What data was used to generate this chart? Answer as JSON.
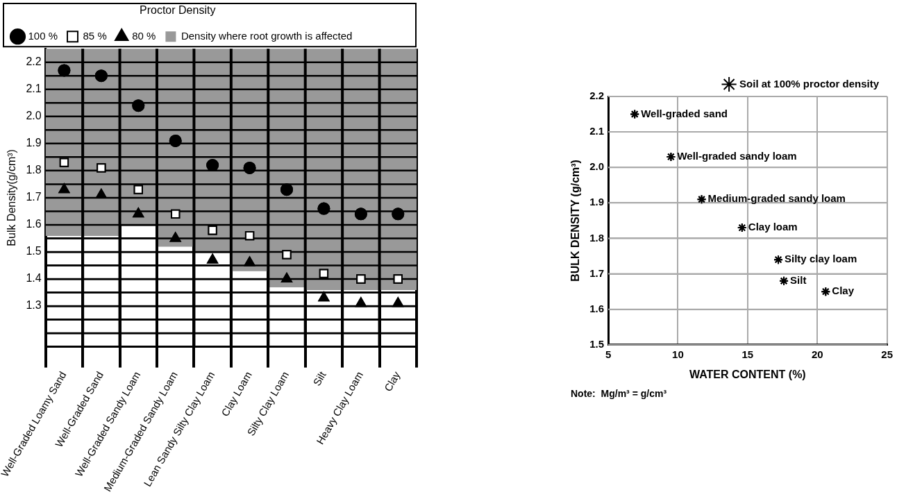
{
  "chart_data": [
    {
      "type": "scatter",
      "ylabel": "Bulk Density(g/cm³)",
      "legend_title": "Proctor Density",
      "legend": "top",
      "grid": true,
      "categories": [
        "Well-Graded Loamy Sand",
        "Well-Graded Sand",
        "Well-Graded Sandy Loam",
        "Medium-Graded Sandy Loam",
        "Lean Sandy Silty Clay Loam",
        "Clay Loam",
        "Silty Clay Loam",
        "Silt",
        "Heavy Clay Loam",
        "Clay"
      ],
      "ylim": [
        1.15,
        2.25
      ],
      "yticks": [
        {
          "value": 1.2,
          "label": null
        },
        {
          "value": 1.25,
          "label": null
        },
        1.3,
        {
          "value": 1.35,
          "label": null
        },
        1.4,
        {
          "value": 1.45,
          "label": null
        },
        1.5,
        {
          "value": 1.55,
          "label": null
        },
        1.6,
        {
          "value": 1.65,
          "label": null
        },
        1.7,
        {
          "value": 1.75,
          "label": null
        },
        1.8,
        {
          "value": 1.85,
          "label": null
        },
        1.9,
        {
          "value": 1.95,
          "label": null
        },
        {
          "value": 2,
          "label": "2.0"
        },
        {
          "value": 2.05,
          "label": null
        },
        2.1,
        {
          "value": 2.15,
          "label": null
        },
        2.2
      ],
      "series": [
        {
          "name": "100 %",
          "marker": "circle",
          "color": "#000000",
          "values": [
            2.17,
            2.15,
            2.04,
            1.91,
            1.82,
            1.81,
            1.73,
            1.66,
            1.64,
            1.64
          ]
        },
        {
          "name": "85 %",
          "marker": "square",
          "color": "#ffffff",
          "values": [
            1.83,
            1.81,
            1.73,
            1.64,
            1.58,
            1.56,
            1.49,
            1.42,
            1.4,
            1.4
          ]
        },
        {
          "name": "80 %",
          "marker": "triangle",
          "color": "#000000",
          "values": [
            1.73,
            1.71,
            1.64,
            1.55,
            1.47,
            1.46,
            1.4,
            1.33,
            1.31,
            1.31
          ]
        },
        {
          "type": "bar",
          "name": "Density where root growth is affected",
          "color": "#999999",
          "base": [
            1.56,
            1.56,
            1.6,
            1.52,
            1.5,
            1.43,
            1.37,
            1.36,
            1.36,
            1.36
          ],
          "values": [
            0.69,
            0.69,
            0.65,
            0.73,
            0.75,
            0.82,
            0.88,
            0.89,
            0.89,
            0.89
          ]
        }
      ]
    },
    {
      "type": "scatter",
      "xlabel": "WATER CONTENT (%)",
      "ylabel": "BULK DENSITY (g/cm³)",
      "legend": "top right",
      "grid": true,
      "xlim": [
        5,
        25
      ],
      "xticks": [
        5,
        10,
        15,
        20,
        25
      ],
      "ylim": [
        1.5,
        2.2
      ],
      "yticks": [
        1.5,
        1.6,
        1.7,
        1.8,
        1.9,
        {
          "value": 2,
          "label": "2.0"
        },
        2.1,
        2.2
      ],
      "series": [
        {
          "name": "Soil at 100% proctor density",
          "marker": "cross",
          "color": "#000000",
          "x": [
            6.9,
            9.5,
            11.7,
            14.6,
            17.2,
            17.6,
            20.6
          ],
          "values": [
            2.15,
            2.03,
            1.91,
            1.83,
            1.74,
            1.68,
            1.65
          ]
        }
      ],
      "annotations": [
        {
          "text": "Well-graded sand",
          "x": 6.9,
          "y": 2.15
        },
        {
          "text": "Well-graded sandy loam",
          "x": 9.5,
          "y": 2.03
        },
        {
          "text": "Medium-graded sandy loam",
          "x": 11.7,
          "y": 1.91
        },
        {
          "text": "Clay loam",
          "x": 14.6,
          "y": 1.83
        },
        {
          "text": "Silty clay loam",
          "x": 17.2,
          "y": 1.74
        },
        {
          "text": "Silt",
          "x": 17.6,
          "y": 1.68
        },
        {
          "text": "Clay",
          "x": 20.6,
          "y": 1.65
        },
        "Note:  Mg/m³ = g/cm³"
      ]
    }
  ]
}
